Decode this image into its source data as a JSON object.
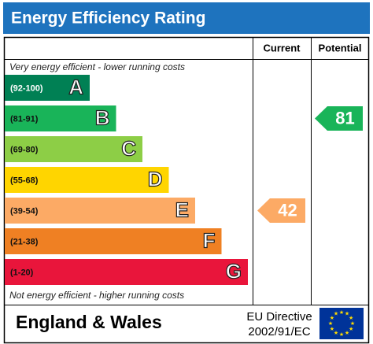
{
  "header": {
    "title": "Energy Efficiency Rating"
  },
  "columns": [
    "Current",
    "Potential"
  ],
  "top_note": "Very energy efficient - lower running costs",
  "bottom_note": "Not energy efficient - higher running costs",
  "bands": [
    {
      "range": "(92-100)",
      "letter": "A",
      "color": "#008054"
    },
    {
      "range": "(81-91)",
      "letter": "B",
      "color": "#19b459"
    },
    {
      "range": "(69-80)",
      "letter": "C",
      "color": "#8dce46"
    },
    {
      "range": "(55-68)",
      "letter": "D",
      "color": "#ffd500"
    },
    {
      "range": "(39-54)",
      "letter": "E",
      "color": "#fcaa65"
    },
    {
      "range": "(21-38)",
      "letter": "F",
      "color": "#ef8023"
    },
    {
      "range": "(1-20)",
      "letter": "G",
      "color": "#e9153b"
    }
  ],
  "ratings": {
    "current": 42,
    "potential": 81
  },
  "footer": {
    "region": "England & Wales",
    "directive": [
      "EU Directive",
      "2002/91/EC"
    ]
  }
}
